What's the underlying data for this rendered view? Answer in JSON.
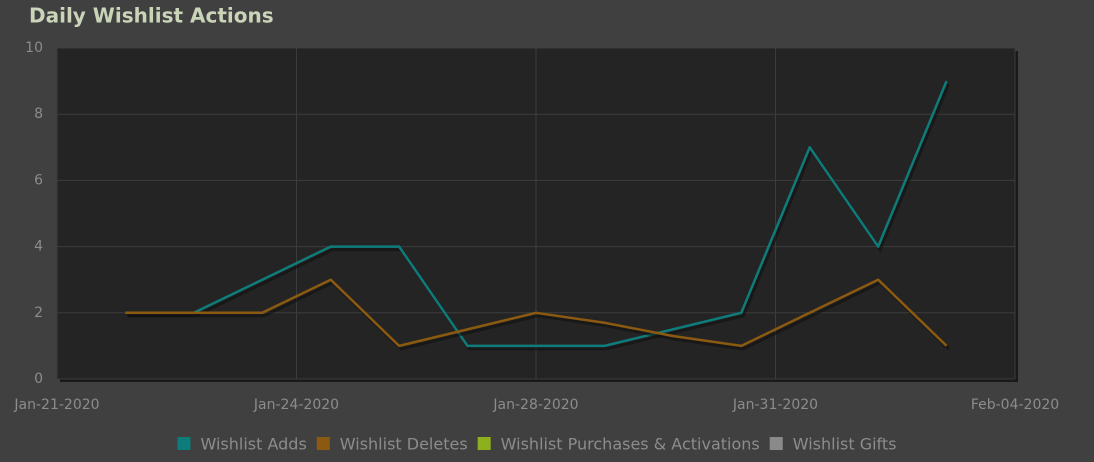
{
  "chart_data": {
    "type": "line",
    "title": "Daily Wishlist Actions",
    "x": [
      "2020-01-22",
      "2020-01-23",
      "2020-01-24",
      "2020-01-25",
      "2020-01-26",
      "2020-01-27",
      "2020-01-28",
      "2020-01-29",
      "2020-01-30",
      "2020-01-31",
      "2020-02-01",
      "2020-02-02",
      "2020-02-03"
    ],
    "series": [
      {
        "name": "Wishlist Adds",
        "color": "#0e7c7b",
        "values": [
          2,
          2,
          3,
          4,
          4,
          1,
          1,
          1,
          1.5,
          2,
          7,
          4,
          9
        ]
      },
      {
        "name": "Wishlist Deletes",
        "color": "#8b5a10",
        "values": [
          2,
          2,
          2,
          3,
          1,
          1.5,
          2,
          1.7,
          1.3,
          1,
          2,
          3,
          1
        ]
      },
      {
        "name": "Wishlist Purchases & Activations",
        "color": "#8fb01d",
        "values": [
          null,
          null,
          null,
          null,
          null,
          null,
          null,
          null,
          null,
          null,
          null,
          null,
          null
        ]
      },
      {
        "name": "Wishlist Gifts",
        "color": "#8a8a8a",
        "values": [
          null,
          null,
          null,
          null,
          null,
          null,
          null,
          null,
          null,
          null,
          null,
          null,
          null
        ]
      }
    ],
    "xlim": [
      "2020-01-21T00:00",
      "2020-02-04T00:00"
    ],
    "xticks": [
      {
        "value": "2020-01-21T00:00",
        "label": "Jan-21-2020"
      },
      {
        "value": "2020-01-24T12:00",
        "label": "Jan-24-2020"
      },
      {
        "value": "2020-01-28T00:00",
        "label": "Jan-28-2020"
      },
      {
        "value": "2020-01-31T12:00",
        "label": "Jan-31-2020"
      },
      {
        "value": "2020-02-04T00:00",
        "label": "Feb-04-2020"
      }
    ],
    "ylim": [
      0,
      10
    ],
    "yticks": [
      0,
      2,
      4,
      6,
      8,
      10
    ],
    "grid": true,
    "legend": "bottom"
  }
}
